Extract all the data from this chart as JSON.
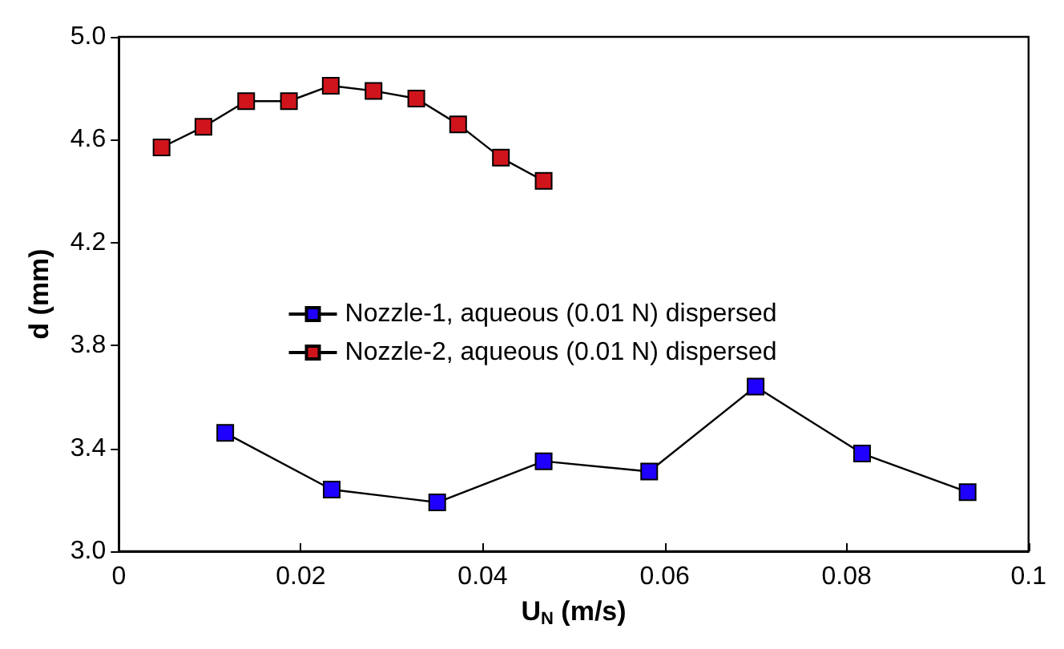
{
  "chart_data": {
    "type": "line",
    "xlabel": "U$_{N}$ (m/s)",
    "ylabel": "d (mm)",
    "xlim": [
      0,
      0.1
    ],
    "xticks": [
      0,
      0.02,
      0.04,
      0.06,
      0.08,
      0.1
    ],
    "ylim": [
      3.0,
      5.0
    ],
    "yticks": [
      {
        "value": 3.0,
        "label": "3.0"
      },
      {
        "value": 3.4,
        "label": "3.4"
      },
      {
        "value": 3.8,
        "label": "3.8"
      },
      {
        "value": 4.2,
        "label": "4.2"
      },
      {
        "value": 4.6,
        "label": "4.6"
      },
      {
        "value": 5.0,
        "label": "5.0"
      }
    ],
    "grid": false,
    "legend": "center",
    "marker": "square",
    "line_style": "solid",
    "series": [
      {
        "name": "Nozzle-1, aqueous (0.01 N) dispersed",
        "color": "#1f00ff",
        "x": [
          0.0117,
          0.0234,
          0.035,
          0.0467,
          0.0583,
          0.07,
          0.0817,
          0.0933
        ],
        "values": [
          3.46,
          3.24,
          3.19,
          3.35,
          3.31,
          3.64,
          3.38,
          3.23
        ]
      },
      {
        "name": "Nozzle-2, aqueous (0.01 N) dispersed",
        "color": "#d0141b",
        "x": [
          0.0047,
          0.0093,
          0.014,
          0.0187,
          0.0233,
          0.028,
          0.0327,
          0.0373,
          0.042,
          0.0467
        ],
        "values": [
          4.57,
          4.65,
          4.75,
          4.75,
          4.81,
          4.79,
          4.76,
          4.66,
          4.53,
          4.44
        ]
      }
    ]
  }
}
